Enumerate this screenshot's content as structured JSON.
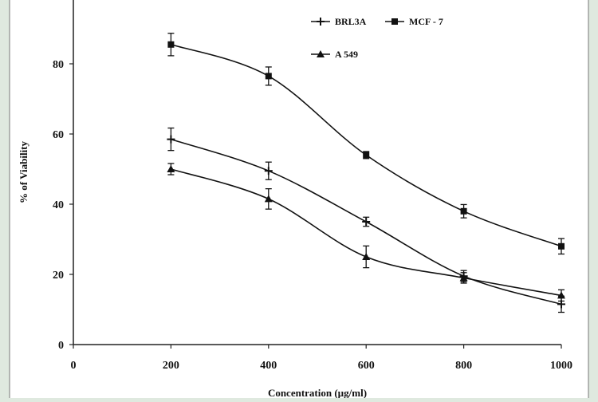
{
  "chart_data": {
    "type": "line",
    "title": "",
    "xlabel": "Concentration (µg/ml)",
    "ylabel": "% of Viability",
    "xlim": [
      0,
      1000
    ],
    "ylim": [
      0,
      100
    ],
    "x_ticks": [
      "0",
      "200",
      "400",
      "600",
      "800",
      "1000"
    ],
    "y_ticks": [
      "0",
      "20",
      "40",
      "60",
      "80"
    ],
    "x": [
      200,
      400,
      600,
      800,
      1000
    ],
    "series": [
      {
        "name": "BRL3A",
        "marker": "plus",
        "values": [
          58.5,
          49.5,
          35,
          19.5,
          11.5
        ],
        "errors": [
          3.2,
          2.5,
          1.3,
          1.6,
          2.3
        ]
      },
      {
        "name": "MCF - 7",
        "marker": "square",
        "values": [
          85.5,
          76.5,
          54,
          38,
          28
        ],
        "errors": [
          3.2,
          2.6,
          1.0,
          1.9,
          2.2
        ]
      },
      {
        "name": "A 549",
        "marker": "triangle",
        "values": [
          50,
          41.5,
          25,
          19,
          14
        ],
        "errors": [
          1.6,
          2.9,
          3.1,
          1.5,
          1.6
        ]
      }
    ],
    "grid": false,
    "legend": "top-right"
  }
}
